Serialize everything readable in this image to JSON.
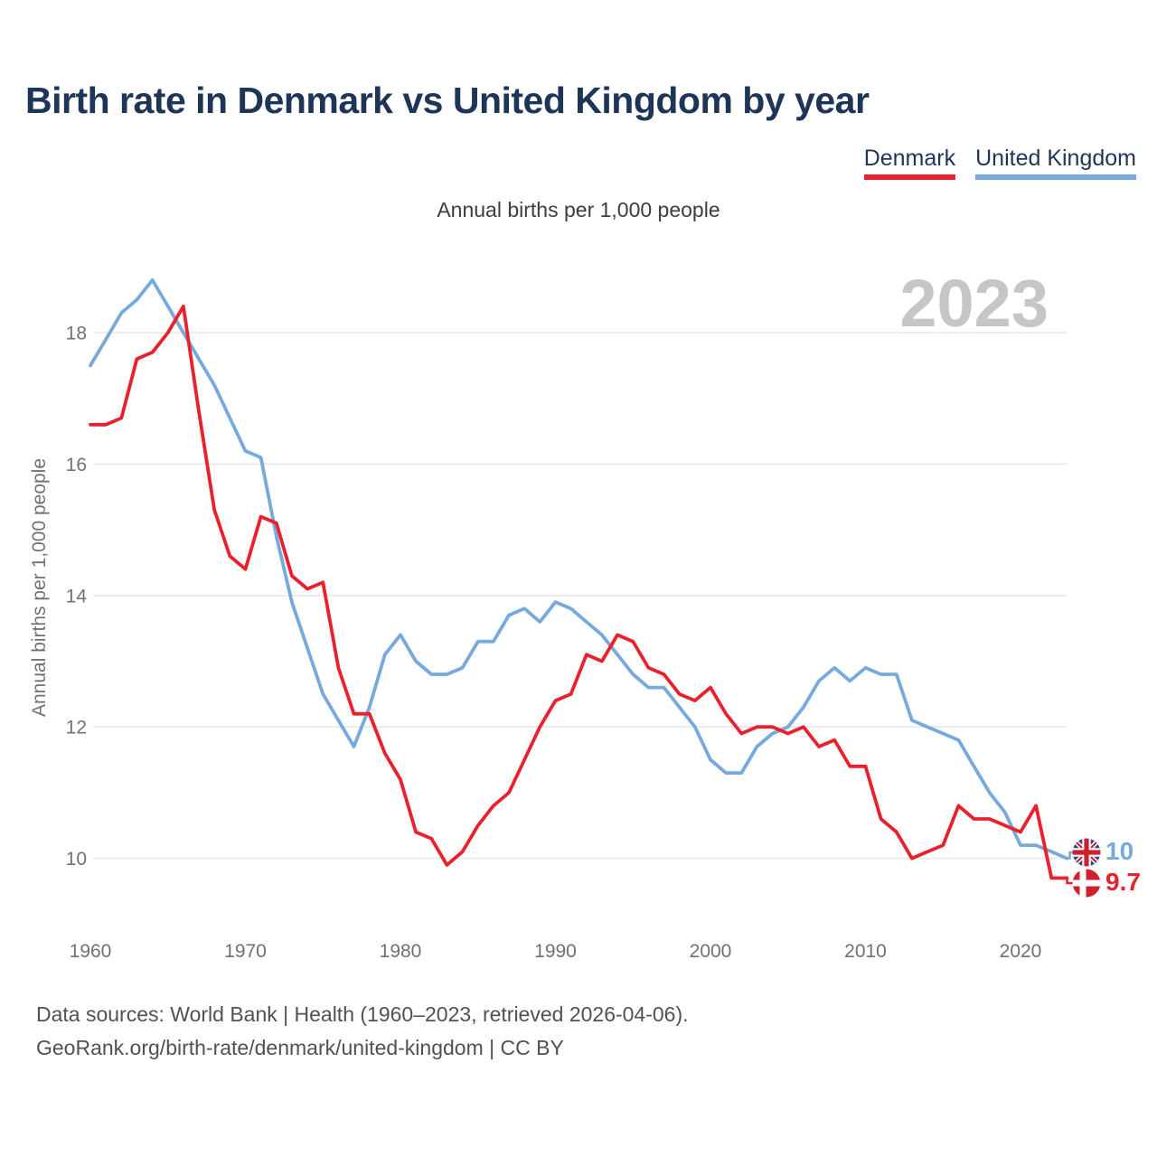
{
  "page": {
    "title": "Birth rate in Denmark vs United Kingdom by year",
    "subtitle": "Annual births per 1,000 people",
    "watermark_year": "2023",
    "footer_line1": "Data sources: World Bank | Health (1960–2023, retrieved 2026-04-06).",
    "footer_line2": "GeoRank.org/birth-rate/denmark/united-kingdom | CC BY"
  },
  "legend": {
    "denmark_label": "Denmark",
    "united_kingdom_label": "United Kingdom"
  },
  "axes": {
    "y_label": "Annual births per 1,000 people",
    "y_ticks": [
      18,
      16,
      14,
      12,
      10
    ],
    "x_ticks": [
      1960,
      1970,
      1980,
      1990,
      2000,
      2010,
      2020
    ]
  },
  "colors": {
    "denmark": "#e8212d",
    "united_kingdom": "#76aadc",
    "title_navy": "#1d3557",
    "grid": "#e8e8e8",
    "watermark": "#c6c6c6"
  },
  "chart_data": {
    "type": "line",
    "title": "Birth rate in Denmark vs United Kingdom by year",
    "ylabel": "Annual births per 1,000 people",
    "xlabel": "",
    "ylim": [
      9.4,
      19.2
    ],
    "xlim": [
      1960,
      2023
    ],
    "grid": "horizontal",
    "legend_position": "top-right",
    "x": [
      1960,
      1961,
      1962,
      1963,
      1964,
      1965,
      1966,
      1967,
      1968,
      1969,
      1970,
      1971,
      1972,
      1973,
      1974,
      1975,
      1976,
      1977,
      1978,
      1979,
      1980,
      1981,
      1982,
      1983,
      1984,
      1985,
      1986,
      1987,
      1988,
      1989,
      1990,
      1991,
      1992,
      1993,
      1994,
      1995,
      1996,
      1997,
      1998,
      1999,
      2000,
      2001,
      2002,
      2003,
      2004,
      2005,
      2006,
      2007,
      2008,
      2009,
      2010,
      2011,
      2012,
      2013,
      2014,
      2015,
      2016,
      2017,
      2018,
      2019,
      2020,
      2021,
      2022,
      2023
    ],
    "series": [
      {
        "id": "denmark",
        "name": "Denmark",
        "color": "#e8212d",
        "values": [
          16.6,
          16.6,
          16.7,
          17.6,
          17.7,
          18.0,
          18.4,
          16.8,
          15.3,
          14.6,
          14.4,
          15.2,
          15.1,
          14.3,
          14.1,
          14.2,
          12.9,
          12.2,
          12.2,
          11.6,
          11.2,
          10.4,
          10.3,
          9.9,
          10.1,
          10.5,
          10.8,
          11.0,
          11.5,
          12.0,
          12.4,
          12.5,
          13.1,
          13.0,
          13.4,
          13.3,
          12.9,
          12.8,
          12.5,
          12.4,
          12.6,
          12.2,
          11.9,
          12.0,
          12.0,
          11.9,
          12.0,
          11.7,
          11.8,
          11.4,
          11.4,
          10.6,
          10.4,
          10.0,
          10.1,
          10.2,
          10.8,
          10.6,
          10.6,
          10.5,
          10.4,
          10.8,
          9.7,
          9.7
        ]
      },
      {
        "id": "united-kingdom",
        "name": "United Kingdom",
        "color": "#76aadc",
        "values": [
          17.5,
          17.9,
          18.3,
          18.5,
          18.8,
          18.4,
          18.0,
          17.6,
          17.2,
          16.7,
          16.2,
          16.1,
          14.9,
          13.9,
          13.2,
          12.5,
          12.1,
          11.7,
          12.3,
          13.1,
          13.4,
          13.0,
          12.8,
          12.8,
          12.9,
          13.3,
          13.3,
          13.7,
          13.8,
          13.6,
          13.9,
          13.8,
          13.6,
          13.4,
          13.1,
          12.8,
          12.6,
          12.6,
          12.3,
          12.0,
          11.5,
          11.3,
          11.3,
          11.7,
          11.9,
          12.0,
          12.3,
          12.7,
          12.9,
          12.7,
          12.9,
          12.8,
          12.8,
          12.1,
          12.0,
          11.9,
          11.8,
          11.4,
          11.0,
          10.7,
          10.2,
          10.2,
          10.1,
          10.0
        ]
      }
    ],
    "end_labels": {
      "united_kingdom": "10",
      "denmark": "9.7"
    }
  }
}
